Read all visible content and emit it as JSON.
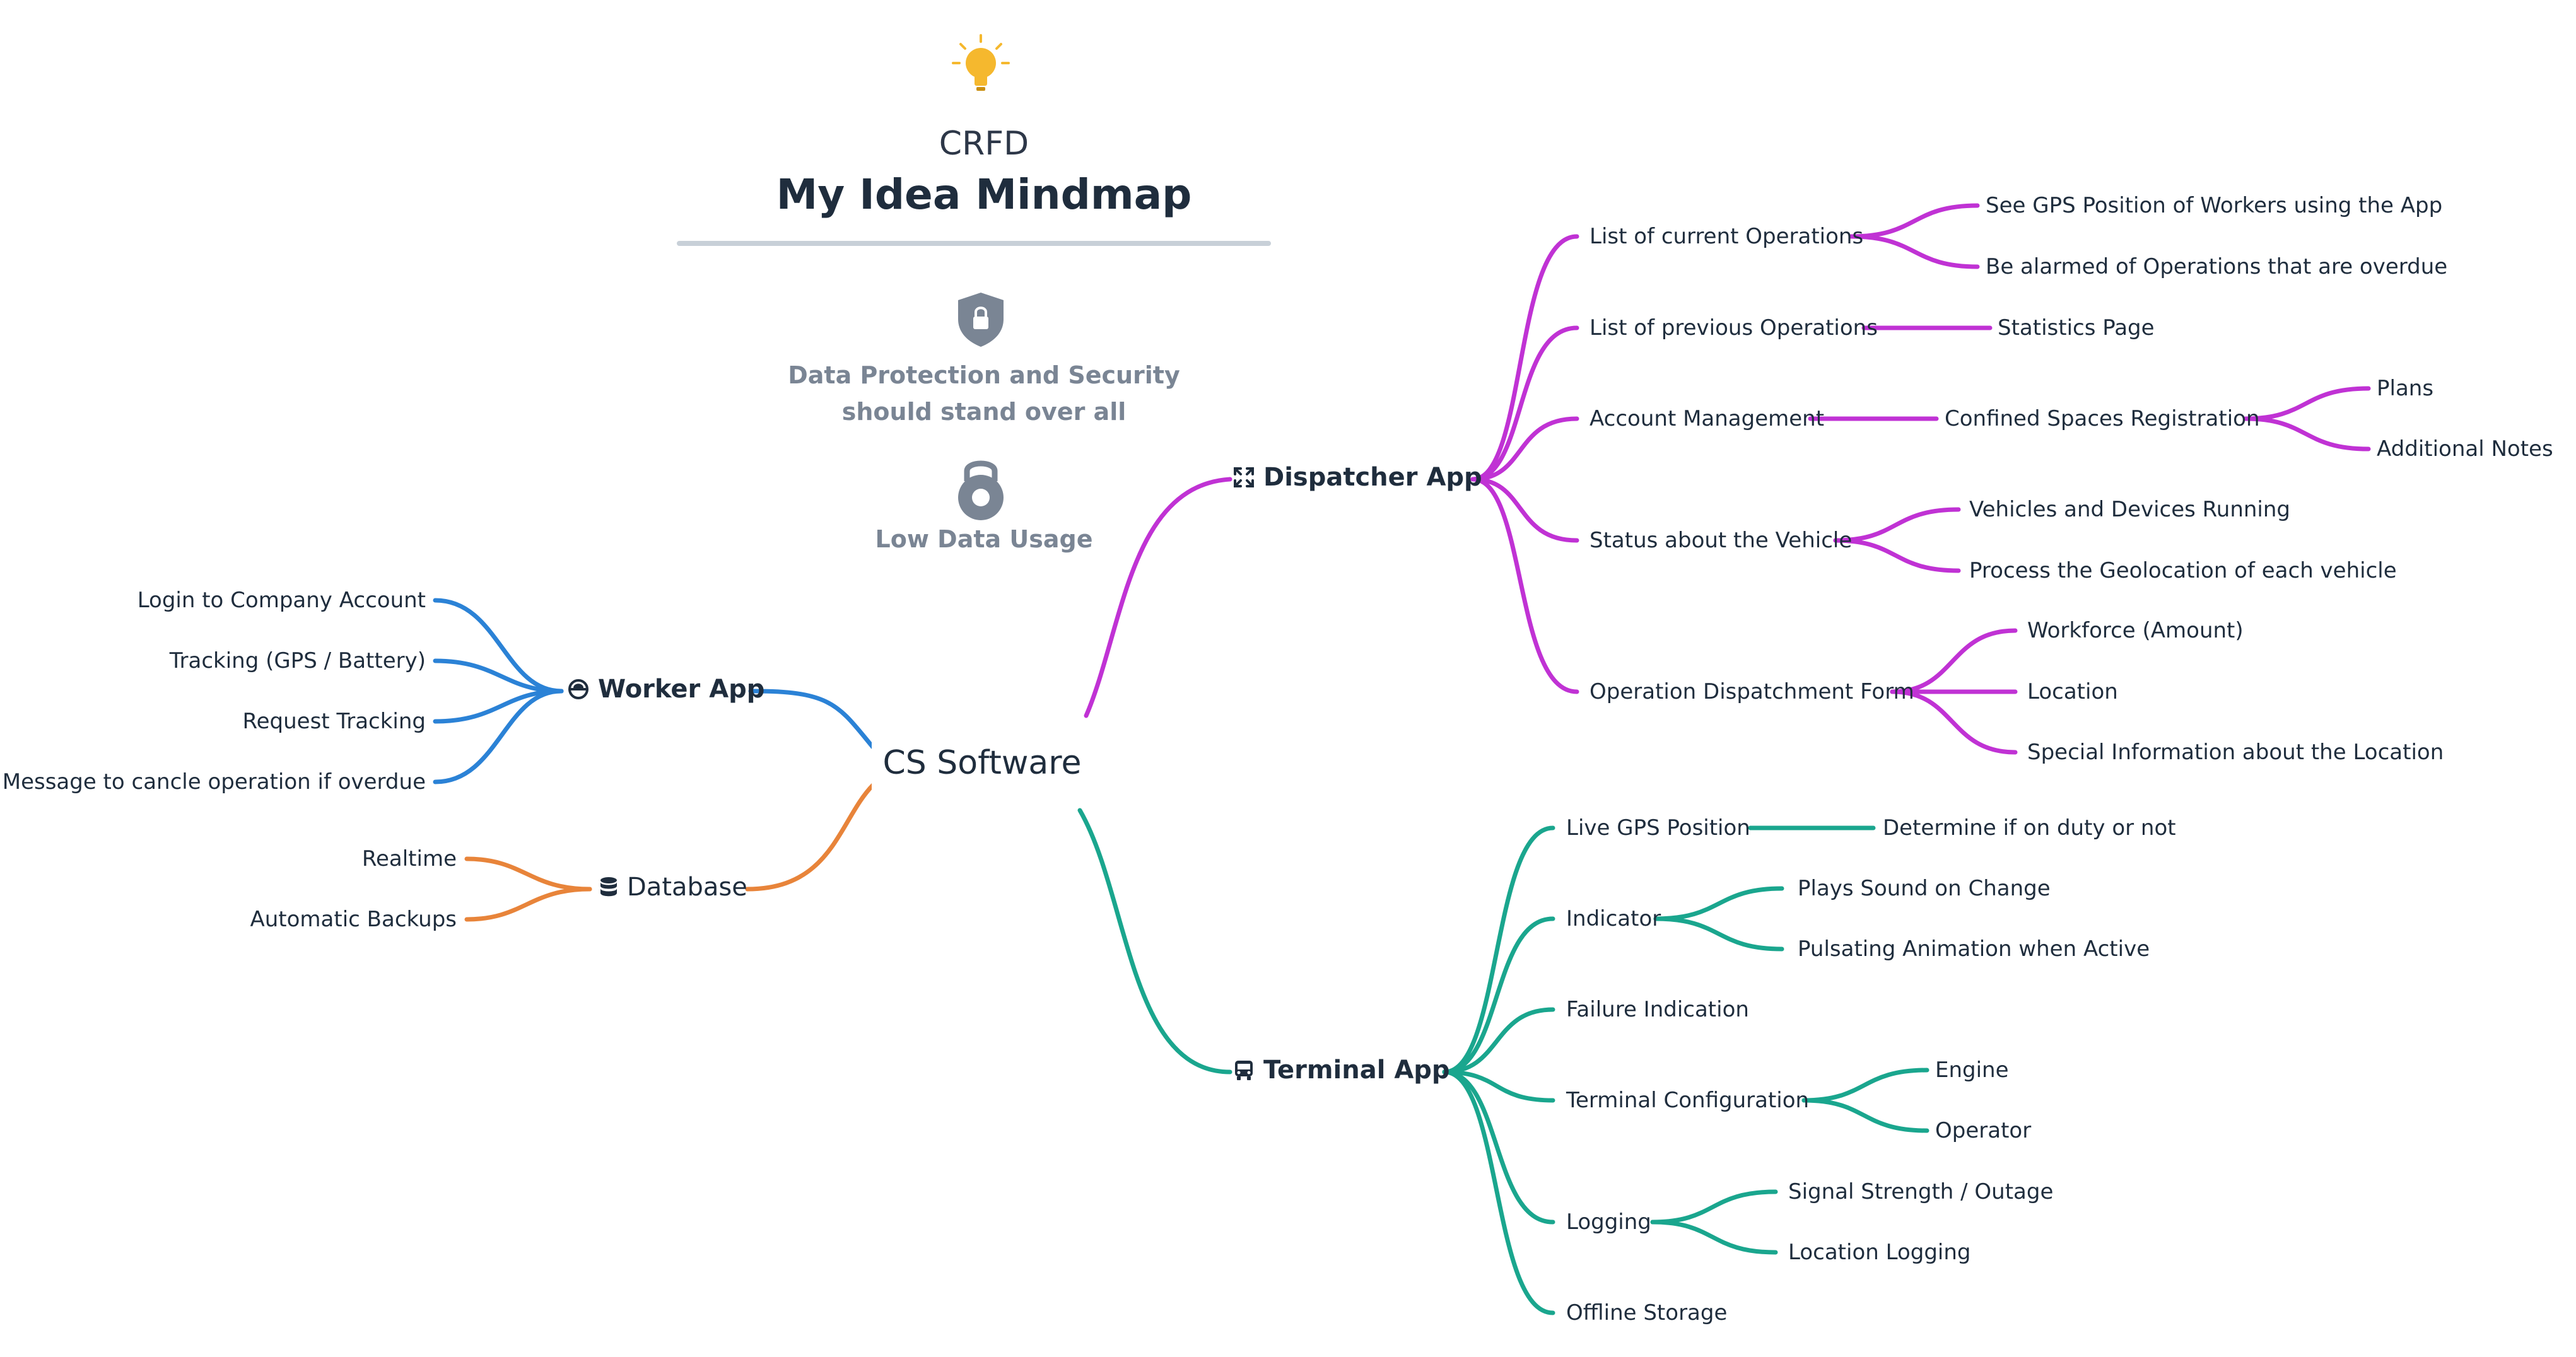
{
  "header": {
    "subtitle": "CRFD",
    "title": "My Idea Mindmap"
  },
  "notes": [
    {
      "icon": "shield-lock-icon",
      "text_line1": "Data Protection and Security",
      "text_line2": "should stand over all"
    },
    {
      "icon": "kettlebell-icon",
      "text": "Low Data Usage"
    }
  ],
  "center": {
    "label": "CS Software"
  },
  "colors": {
    "dispatcher": "#c032d4",
    "terminal": "#1aa68e",
    "worker": "#2b82d6",
    "database": "#e8843a",
    "icon_gray": "#7a8594",
    "bulb": "#f5b82e"
  },
  "branches": {
    "dispatcher": {
      "label": "Dispatcher App",
      "icon": "expand-arrows-icon",
      "children": [
        {
          "label": "List of current Operations",
          "children": [
            "See GPS Position of Workers using the App",
            "Be alarmed of Operations that are overdue"
          ]
        },
        {
          "label": "List of previous Operations",
          "children": [
            "Statistics Page"
          ]
        },
        {
          "label": "Account Management",
          "children": [
            "Confined Spaces Registration"
          ],
          "grandchildren": [
            "Plans",
            "Additional Notes"
          ]
        },
        {
          "label": "Status about the Vehicle",
          "children": [
            "Vehicles and Devices Running",
            "Process the Geolocation of each vehicle"
          ]
        },
        {
          "label": "Operation Dispatchment Form",
          "children": [
            "Workforce (Amount)",
            "Location",
            "Special Information about the Location"
          ]
        }
      ]
    },
    "terminal": {
      "label": "Terminal App",
      "icon": "bus-icon",
      "children": [
        {
          "label": "Live GPS Position",
          "children": [
            "Determine if on duty or not"
          ]
        },
        {
          "label": "Indicator",
          "children": [
            "Plays Sound on Change",
            "Pulsating Animation when Active"
          ]
        },
        {
          "label": "Failure Indication",
          "children": []
        },
        {
          "label": "Terminal Configuration",
          "children": [
            "Engine",
            "Operator"
          ]
        },
        {
          "label": "Logging",
          "children": [
            "Signal Strength / Outage",
            "Location Logging"
          ]
        },
        {
          "label": "Offline Storage",
          "children": []
        }
      ]
    },
    "worker": {
      "label": "Worker App",
      "icon": "hard-hat-icon",
      "children": [
        "Login to Company Account",
        "Tracking (GPS / Battery)",
        "Request Tracking",
        "Message to cancle operation if overdue"
      ]
    },
    "database": {
      "label": "Database",
      "icon": "database-icon",
      "children": [
        "Realtime",
        "Automatic Backups"
      ]
    }
  }
}
